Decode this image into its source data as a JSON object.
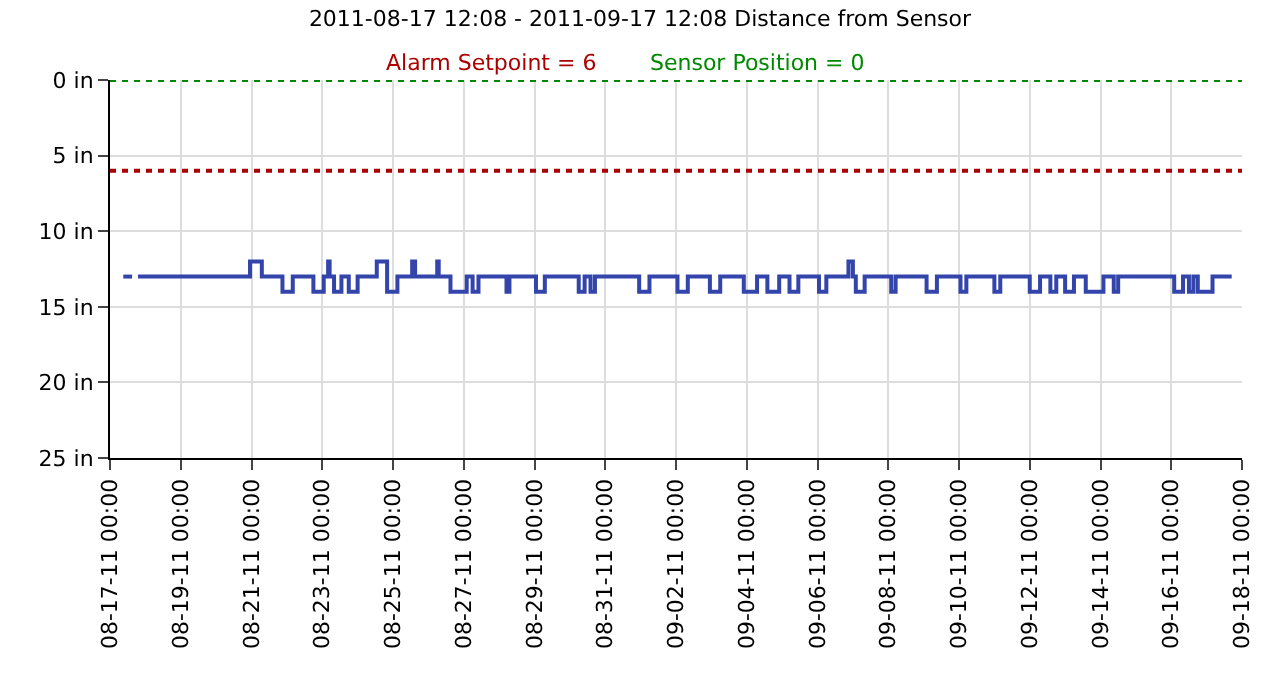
{
  "chart_data": {
    "type": "step",
    "title": "2011-08-17 12:08 - 2011-09-17 12:08 Distance from Sensor",
    "series": [
      {
        "color": "#3344aa",
        "x": [
          "2011-08-17T09:00",
          "2011-08-17T15:00",
          "2011-08-17T17:00",
          "2011-08-17T19:00",
          "2011-08-20T23:00",
          "2011-08-21T07:00",
          "2011-08-21T21:00",
          "2011-08-22T04:00",
          "2011-08-22T18:00",
          "2011-08-23T01:00",
          "2011-08-23T04:00",
          "2011-08-23T05:00",
          "2011-08-23T08:00",
          "2011-08-23T13:00",
          "2011-08-23T18:00",
          "2011-08-24T00:00",
          "2011-08-24T13:00",
          "2011-08-24T20:00",
          "2011-08-25T03:00",
          "2011-08-25T13:00",
          "2011-08-25T15:00",
          "2011-08-26T06:00",
          "2011-08-26T07:00",
          "2011-08-26T15:00",
          "2011-08-27T02:00",
          "2011-08-27T06:00",
          "2011-08-27T10:00",
          "2011-08-28T05:00",
          "2011-08-28T07:00",
          "2011-08-29T01:00",
          "2011-08-29T07:00",
          "2011-08-30T06:00",
          "2011-08-30T10:00",
          "2011-08-30T14:00",
          "2011-08-30T17:00",
          "2011-08-31T23:00",
          "2011-09-01T06:00",
          "2011-09-02T01:00",
          "2011-09-02T08:00",
          "2011-09-02T23:00",
          "2011-09-03T06:00",
          "2011-09-03T22:00",
          "2011-09-04T07:00",
          "2011-09-04T14:00",
          "2011-09-04T22:00",
          "2011-09-05T05:00",
          "2011-09-05T11:00",
          "2011-09-06T01:00",
          "2011-09-06T06:00",
          "2011-09-06T21:00",
          "2011-09-07T00:00",
          "2011-09-07T02:00",
          "2011-09-07T08:00",
          "2011-09-08T02:00",
          "2011-09-08T05:00",
          "2011-09-09T02:00",
          "2011-09-09T09:00",
          "2011-09-10T01:00",
          "2011-09-10T05:00",
          "2011-09-11T00:00",
          "2011-09-11T04:00",
          "2011-09-12T00:00",
          "2011-09-12T07:00",
          "2011-09-12T14:00",
          "2011-09-12T18:00",
          "2011-09-13T00:00",
          "2011-09-13T06:00",
          "2011-09-13T14:00",
          "2011-09-14T02:00",
          "2011-09-14T09:00",
          "2011-09-14T12:00",
          "2011-09-16T02:00",
          "2011-09-16T08:00",
          "2011-09-16T12:00",
          "2011-09-16T15:00",
          "2011-09-16T18:00",
          "2011-09-17T04:00",
          "2011-09-17T17:00"
        ],
        "values": [
          13,
          13,
          null,
          13,
          12,
          13,
          14,
          13,
          14,
          13,
          12,
          13,
          14,
          13,
          14,
          13,
          12,
          14,
          13,
          12,
          13,
          12,
          13,
          14,
          13,
          14,
          13,
          14,
          13,
          14,
          13,
          14,
          13,
          14,
          13,
          14,
          13,
          14,
          13,
          14,
          13,
          14,
          13,
          14,
          13,
          14,
          13,
          14,
          13,
          12,
          13,
          14,
          13,
          14,
          13,
          14,
          13,
          14,
          13,
          14,
          13,
          14,
          13,
          14,
          13,
          14,
          13,
          14,
          13,
          14,
          13,
          14,
          13,
          14,
          13,
          14,
          13,
          13
        ]
      }
    ],
    "ylim": [
      25,
      0
    ],
    "yticks": [
      {
        "value": 0,
        "label": "0 in"
      },
      {
        "value": 5,
        "label": "5 in"
      },
      {
        "value": 10,
        "label": "10 in"
      },
      {
        "value": 15,
        "label": "15 in"
      },
      {
        "value": 20,
        "label": "20 in"
      },
      {
        "value": 25,
        "label": "25 in"
      }
    ],
    "xlim": [
      "2011-08-17",
      "2011-09-18"
    ],
    "xticks": [
      {
        "value": "2011-08-17",
        "label": "08-17-11 00:00"
      },
      {
        "value": "2011-08-19",
        "label": "08-19-11 00:00"
      },
      {
        "value": "2011-08-21",
        "label": "08-21-11 00:00"
      },
      {
        "value": "2011-08-23",
        "label": "08-23-11 00:00"
      },
      {
        "value": "2011-08-25",
        "label": "08-25-11 00:00"
      },
      {
        "value": "2011-08-27",
        "label": "08-27-11 00:00"
      },
      {
        "value": "2011-08-29",
        "label": "08-29-11 00:00"
      },
      {
        "value": "2011-08-31",
        "label": "08-31-11 00:00"
      },
      {
        "value": "2011-09-02",
        "label": "09-02-11 00:00"
      },
      {
        "value": "2011-09-04",
        "label": "09-04-11 00:00"
      },
      {
        "value": "2011-09-06",
        "label": "09-06-11 00:00"
      },
      {
        "value": "2011-09-08",
        "label": "09-08-11 00:00"
      },
      {
        "value": "2011-09-10",
        "label": "09-10-11 00:00"
      },
      {
        "value": "2011-09-12",
        "label": "09-12-11 00:00"
      },
      {
        "value": "2011-09-14",
        "label": "09-14-11 00:00"
      },
      {
        "value": "2011-09-16",
        "label": "09-16-11 00:00"
      },
      {
        "value": "2011-09-18",
        "label": "09-18-11 00:00"
      }
    ],
    "ref_lines": [
      {
        "axis": "y",
        "value": 6,
        "label": "Alarm Setpoint = 6",
        "color": "#aa0000",
        "line_style": "dotted"
      },
      {
        "axis": "y",
        "value": 0,
        "label": "Sensor Position = 0",
        "color": "#008800",
        "line_style": "dotted"
      }
    ],
    "grid": true,
    "line_style": "solid",
    "marker": "none"
  }
}
